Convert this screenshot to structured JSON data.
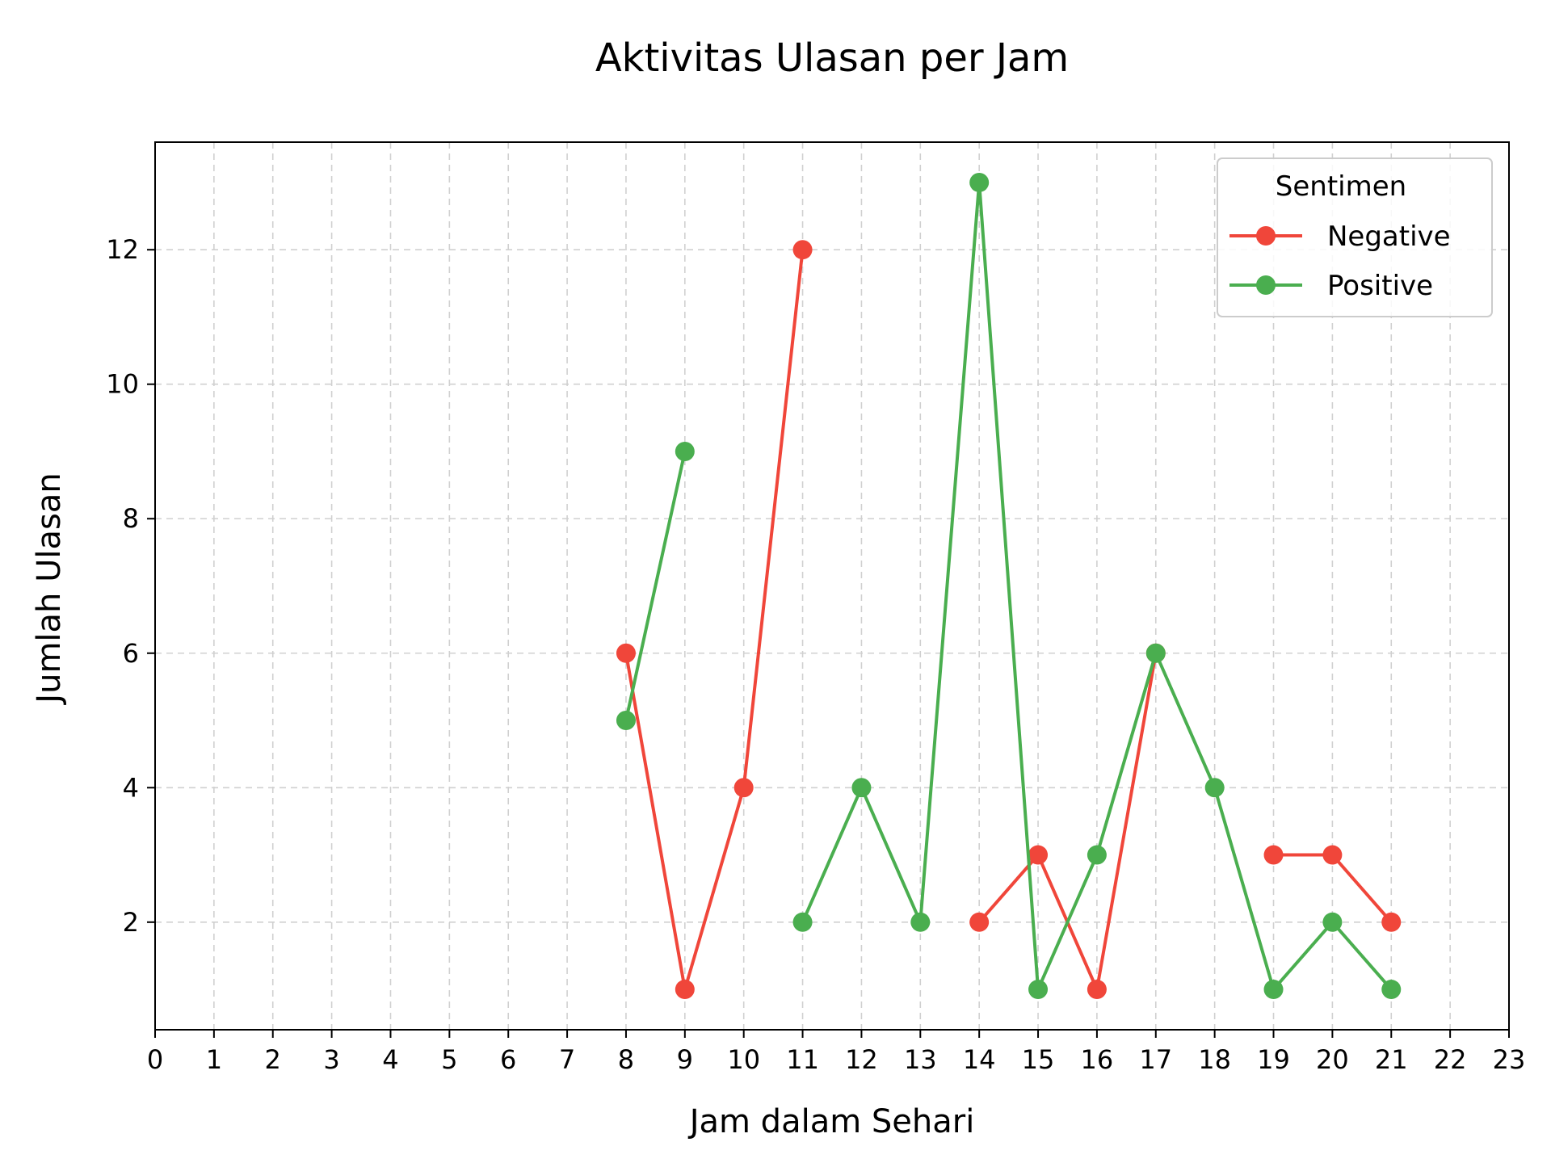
{
  "chart_data": {
    "type": "line",
    "title": "Aktivitas Ulasan per Jam",
    "xlabel": "Jam dalam Sehari",
    "ylabel": "Jumlah Ulasan",
    "xlim": [
      0,
      23
    ],
    "ylim": [
      0.4,
      13.6
    ],
    "xticks": [
      0,
      1,
      2,
      3,
      4,
      5,
      6,
      7,
      8,
      9,
      10,
      11,
      12,
      13,
      14,
      15,
      16,
      17,
      18,
      19,
      20,
      21,
      22,
      23
    ],
    "yticks": [
      2,
      4,
      6,
      8,
      10,
      12
    ],
    "grid": true,
    "legend": {
      "title": "Sentimen",
      "placement": "top-right"
    },
    "series": [
      {
        "name": "Negative",
        "color": "#f0463a",
        "segments": [
          {
            "x": [
              8,
              9,
              10,
              11
            ],
            "y": [
              6,
              1,
              4,
              12
            ]
          },
          {
            "x": [
              14,
              15,
              16,
              17
            ],
            "y": [
              2,
              3,
              1,
              6
            ]
          },
          {
            "x": [
              19,
              20,
              21
            ],
            "y": [
              3,
              3,
              2
            ]
          }
        ]
      },
      {
        "name": "Positive",
        "color": "#4aae4f",
        "segments": [
          {
            "x": [
              8,
              9
            ],
            "y": [
              5,
              9
            ]
          },
          {
            "x": [
              11,
              12,
              13,
              14,
              15,
              16,
              17,
              18,
              19,
              20,
              21
            ],
            "y": [
              2,
              4,
              2,
              13,
              1,
              3,
              6,
              4,
              1,
              2,
              1
            ]
          }
        ]
      }
    ]
  }
}
